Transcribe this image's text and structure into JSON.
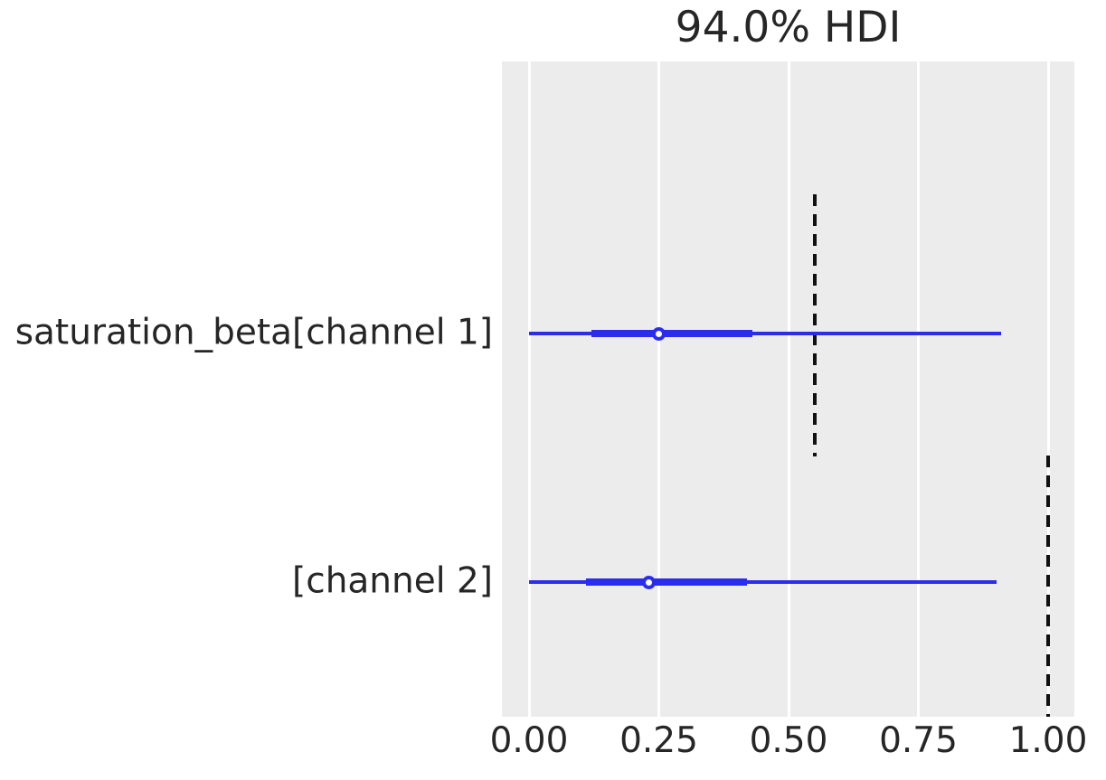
{
  "figure": {
    "title": "94.0% HDI"
  },
  "chart_data": {
    "type": "scatter",
    "subtype": "forest_plot_hdi",
    "title": "94.0% HDI",
    "orientation": "horizontal",
    "xlabel": "",
    "ylabel": "",
    "xlim": [
      -0.05,
      1.05
    ],
    "grid": "vertical white gridlines on gray panel",
    "legend": "none",
    "x_tick_values": [
      0.0,
      0.25,
      0.5,
      0.75,
      1.0
    ],
    "x_tick_labels": [
      "0.00",
      "0.25",
      "0.50",
      "0.75",
      "1.00"
    ],
    "hdi_probability": "94.0%",
    "rows": [
      {
        "label": "saturation_beta[channel 1]",
        "hdi_low": 0.0,
        "hdi_high": 0.91,
        "quartile_low": 0.12,
        "quartile_high": 0.43,
        "median": 0.25,
        "reference_line_x": 0.55
      },
      {
        "label": "[channel 2]",
        "hdi_low": 0.0,
        "hdi_high": 0.9,
        "quartile_low": 0.11,
        "quartile_high": 0.42,
        "median": 0.23,
        "reference_line_x": 1.0
      }
    ],
    "colors": {
      "interval": "#2a2eec",
      "median_marker_fill": "#ffffff",
      "reference_line": "#111111",
      "plot_background": "#ececec",
      "grid_line": "#ffffff",
      "text": "#262626"
    }
  }
}
